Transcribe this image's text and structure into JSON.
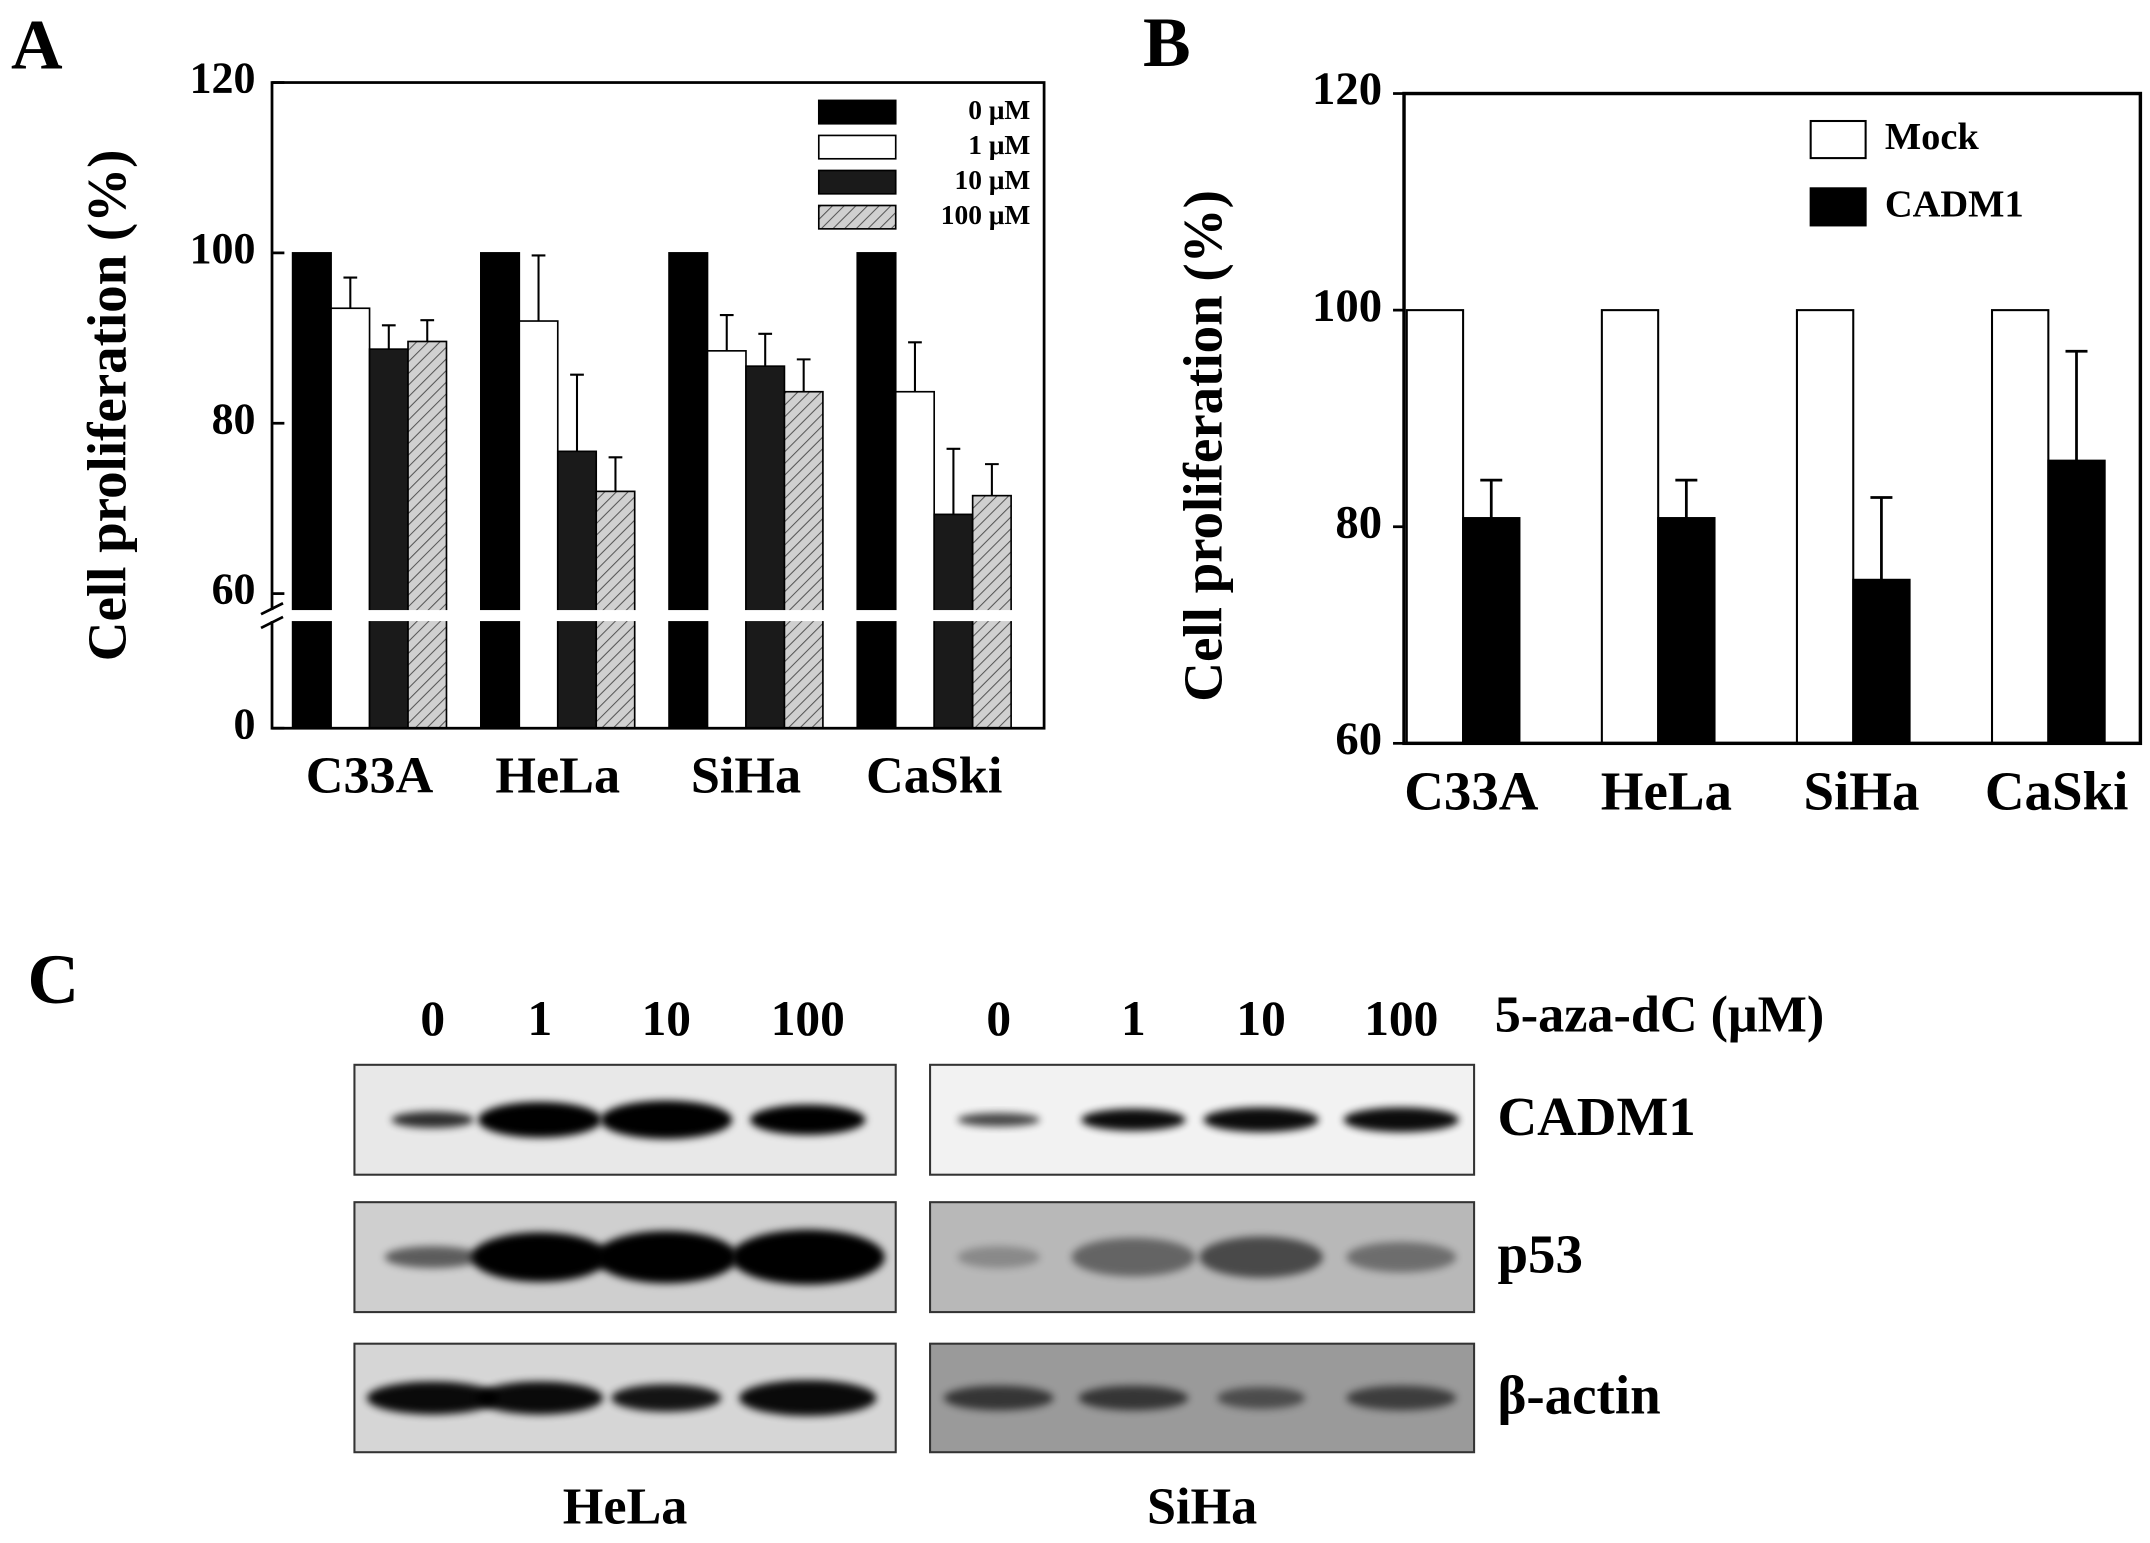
{
  "chart_data": [
    {
      "label": "A",
      "type": "bar",
      "y_label": "Cell proliferation (%)",
      "categories": [
        "C33A",
        "HeLa",
        "SiHa",
        "CaSki"
      ],
      "series": [
        {
          "name": "0 μM",
          "color": "#000000",
          "values": [
            100,
            100,
            100,
            100
          ]
        },
        {
          "name": "1 μM",
          "color": "#ffffff",
          "values": [
            93.5,
            92,
            88.5,
            83.7
          ],
          "errors": [
            3.6,
            7.7,
            4.2,
            5.8
          ]
        },
        {
          "name": "10 μM",
          "color": "#1a1a1a",
          "values": [
            88.7,
            76.7,
            86.7,
            69.3
          ],
          "errors": [
            2.8,
            9,
            3.8,
            7.7
          ]
        },
        {
          "name": "100 μM",
          "color": "#c8c8c8",
          "hatch": true,
          "values": [
            89.6,
            72,
            83.7,
            71.5
          ],
          "errors": [
            2.5,
            4,
            3.8,
            3.7
          ]
        }
      ],
      "ylim": [
        0,
        120
      ],
      "yticks": [
        0,
        60,
        80,
        100,
        120
      ],
      "axis_break": true,
      "legend": "upper right"
    },
    {
      "label": "B",
      "type": "bar",
      "y_label": "Cell proliferation (%)",
      "categories": [
        "C33A",
        "HeLa",
        "SiHa",
        "CaSki"
      ],
      "series": [
        {
          "name": "Mock",
          "color": "#ffffff",
          "values": [
            100,
            100,
            100,
            100
          ]
        },
        {
          "name": "CADM1",
          "color": "#000000",
          "values": [
            80.8,
            80.8,
            75.1,
            86.1
          ],
          "errors": [
            3.5,
            3.5,
            7.6,
            10.1
          ]
        }
      ],
      "ylim": [
        60,
        120
      ],
      "yticks": [
        60,
        80,
        100,
        120
      ],
      "legend": "upper right"
    }
  ],
  "blot": {
    "label": "C",
    "treatment": "5-aza-dC (μM)",
    "groups": [
      {
        "name": "HeLa",
        "lanes": [
          0,
          1,
          10,
          100
        ]
      },
      {
        "name": "SiHa",
        "lanes": [
          0,
          1,
          10,
          100
        ]
      }
    ],
    "rows": [
      "CADM1",
      "p53",
      "β-actin"
    ]
  }
}
